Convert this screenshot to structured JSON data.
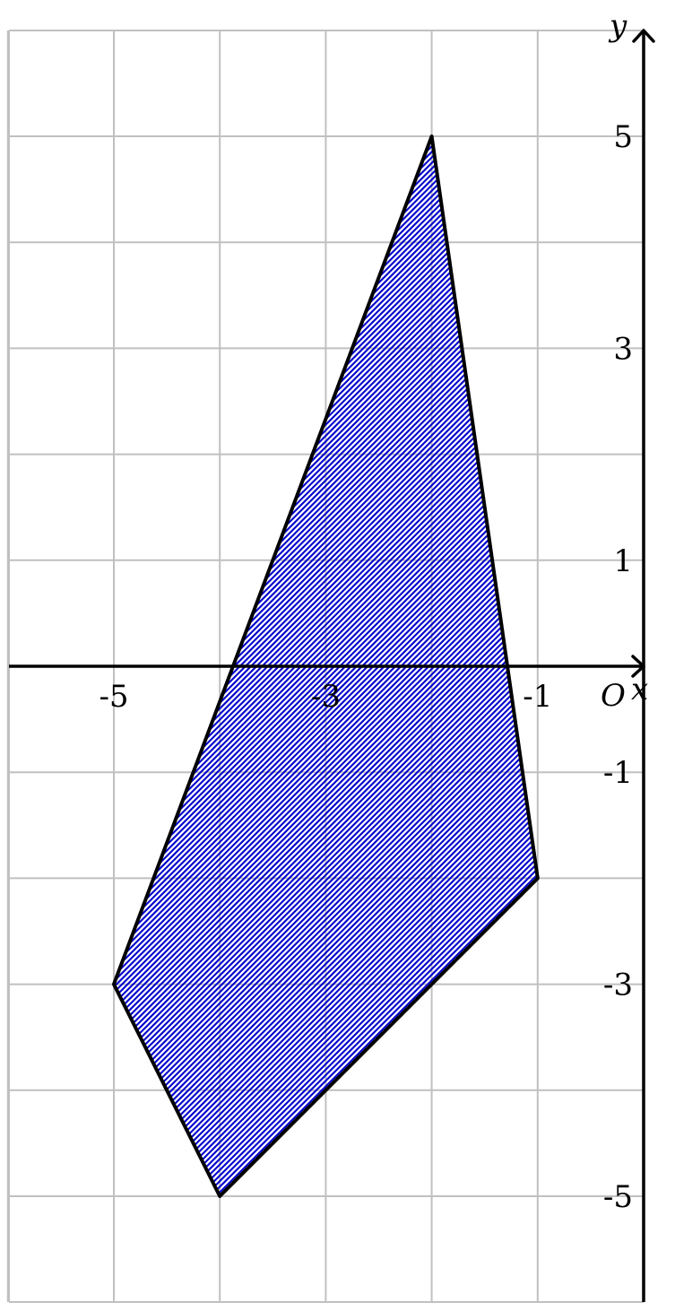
{
  "diagram": {
    "axes": {
      "x_label": "x",
      "y_label": "y",
      "origin_label": "O",
      "x_range": [
        -6,
        0
      ],
      "y_range": [
        -6,
        6
      ]
    },
    "x_ticks": [
      {
        "value": -5,
        "label": "-5"
      },
      {
        "value": -3,
        "label": "-3"
      },
      {
        "value": -1,
        "label": "-1"
      }
    ],
    "y_ticks": [
      {
        "value": 5,
        "label": "5"
      },
      {
        "value": 3,
        "label": "3"
      },
      {
        "value": 1,
        "label": "1"
      },
      {
        "value": -1,
        "label": "-1"
      },
      {
        "value": -3,
        "label": "-3"
      },
      {
        "value": -5,
        "label": "-5"
      }
    ],
    "grid": true,
    "polygon": {
      "vertices": [
        [
          -2,
          5
        ],
        [
          -1,
          -2
        ],
        [
          -4,
          -5
        ],
        [
          -5,
          -3
        ]
      ],
      "fill_style": "hatched",
      "hatch_color": "#0000cc",
      "outline_color": "#000000"
    }
  }
}
